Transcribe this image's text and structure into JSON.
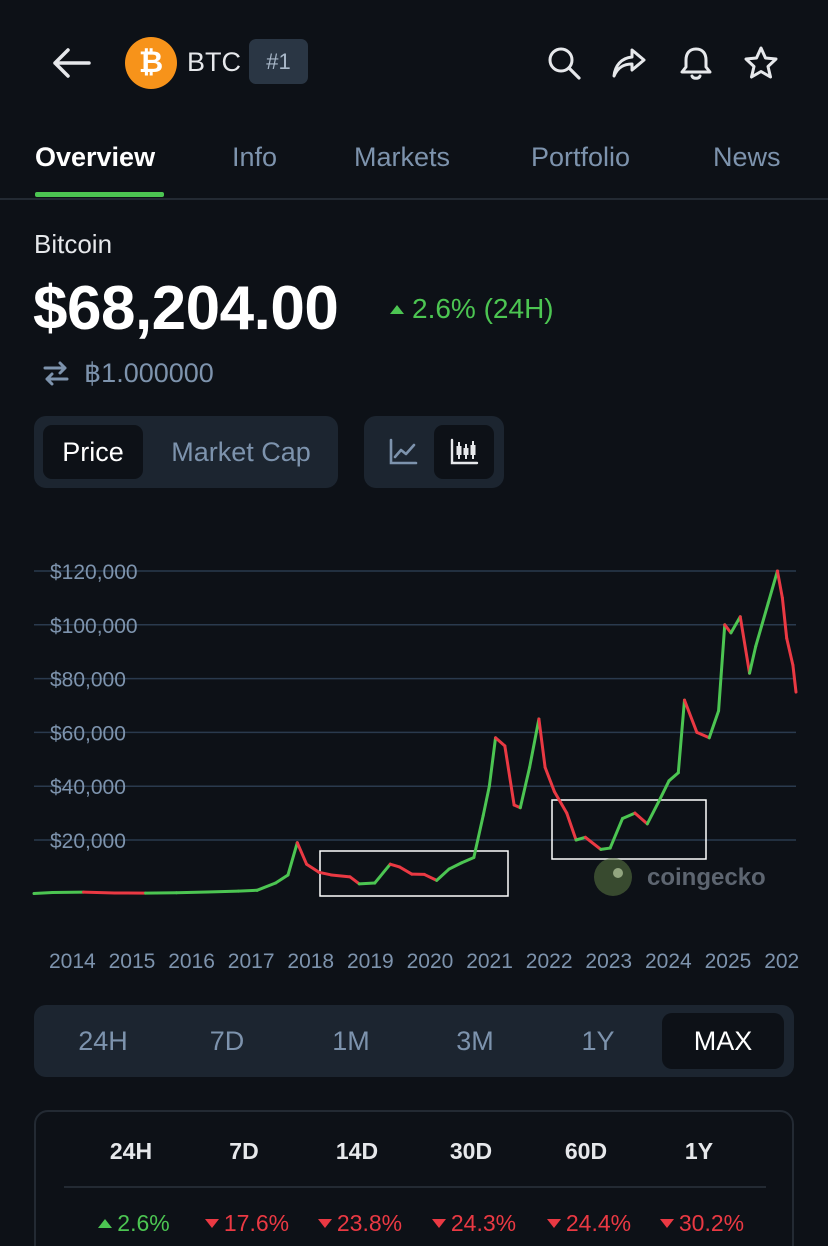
{
  "header": {
    "coin_symbol": "BTC",
    "rank": "#1",
    "icons": [
      "back-arrow-icon",
      "search-icon",
      "share-icon",
      "bell-icon",
      "star-icon"
    ]
  },
  "tabs": [
    {
      "label": "Overview",
      "active": true
    },
    {
      "label": "Info",
      "active": false
    },
    {
      "label": "Markets",
      "active": false
    },
    {
      "label": "Portfolio",
      "active": false
    },
    {
      "label": "News",
      "active": false
    }
  ],
  "coin": {
    "name": "Bitcoin",
    "price": "$68,204.00",
    "change": "2.6% (24H)",
    "btc_value": "฿1.000000"
  },
  "chart_toggle": {
    "price_label": "Price",
    "market_cap_label": "Market Cap",
    "active": "Price",
    "chart_type_active": "candlestick"
  },
  "chart_data": {
    "type": "line",
    "y_tick_labels": [
      "$120,000",
      "$100,000",
      "$80,000",
      "$60,000",
      "$40,000",
      "$20,000"
    ],
    "y_ticks": [
      120000,
      100000,
      80000,
      60000,
      40000,
      20000
    ],
    "x_tick_labels": [
      "2014",
      "2015",
      "2016",
      "2017",
      "2018",
      "2019",
      "2020",
      "2021",
      "2022",
      "2023",
      "2024",
      "2025",
      "202"
    ],
    "ylim": [
      -5000,
      130000
    ],
    "xlim": [
      2013.7,
      2026.0
    ],
    "watermark": "coingecko",
    "series": [
      {
        "x": [
          2013.7,
          2014.0,
          2014.5,
          2015.0,
          2015.5,
          2016.0,
          2016.5,
          2017.0,
          2017.3,
          2017.6,
          2017.8,
          2017.95,
          2018.1,
          2018.3,
          2018.5,
          2018.8,
          2018.95,
          2019.2,
          2019.45,
          2019.6,
          2019.8,
          2020.0,
          2020.2,
          2020.4,
          2020.6,
          2020.8,
          2020.95,
          2021.05,
          2021.15,
          2021.3,
          2021.45,
          2021.55,
          2021.7,
          2021.85,
          2021.95,
          2022.1,
          2022.3,
          2022.45,
          2022.6,
          2022.85,
          2023.0,
          2023.2,
          2023.4,
          2023.6,
          2023.8,
          2023.95,
          2024.1,
          2024.2,
          2024.4,
          2024.6,
          2024.75,
          2024.85,
          2024.95,
          2025.1,
          2025.25,
          2025.35,
          2025.55,
          2025.7,
          2025.78,
          2025.85,
          2025.95,
          2026.0
        ],
        "y": [
          100,
          500,
          600,
          300,
          250,
          400,
          650,
          1000,
          1300,
          4000,
          7000,
          19000,
          11000,
          8000,
          7000,
          6300,
          3700,
          4000,
          11000,
          10000,
          7300,
          7200,
          5000,
          9200,
          11500,
          13500,
          29000,
          40000,
          58000,
          55000,
          33000,
          32000,
          47000,
          65000,
          47000,
          38000,
          30000,
          20000,
          21000,
          16500,
          17000,
          28000,
          30000,
          26000,
          35000,
          42000,
          45000,
          72000,
          60000,
          58000,
          68000,
          100000,
          97000,
          103000,
          82000,
          92000,
          108000,
          120000,
          110000,
          95000,
          85000,
          75000
        ]
      }
    ]
  },
  "ranges": [
    {
      "label": "24H",
      "active": false
    },
    {
      "label": "7D",
      "active": false
    },
    {
      "label": "1M",
      "active": false
    },
    {
      "label": "3M",
      "active": false
    },
    {
      "label": "1Y",
      "active": false
    },
    {
      "label": "MAX",
      "active": true
    }
  ],
  "performance": [
    {
      "period": "24H",
      "value": "2.6%",
      "direction": "up"
    },
    {
      "period": "7D",
      "value": "17.6%",
      "direction": "down"
    },
    {
      "period": "14D",
      "value": "23.8%",
      "direction": "down"
    },
    {
      "period": "30D",
      "value": "24.3%",
      "direction": "down"
    },
    {
      "period": "60D",
      "value": "24.4%",
      "direction": "down"
    },
    {
      "period": "1Y",
      "value": "30.2%",
      "direction": "down"
    }
  ],
  "colors": {
    "background": "#0d1117",
    "up": "#4cc552",
    "down": "#ea3943",
    "muted": "#7d93ad",
    "bitcoin_orange": "#f7931a"
  }
}
